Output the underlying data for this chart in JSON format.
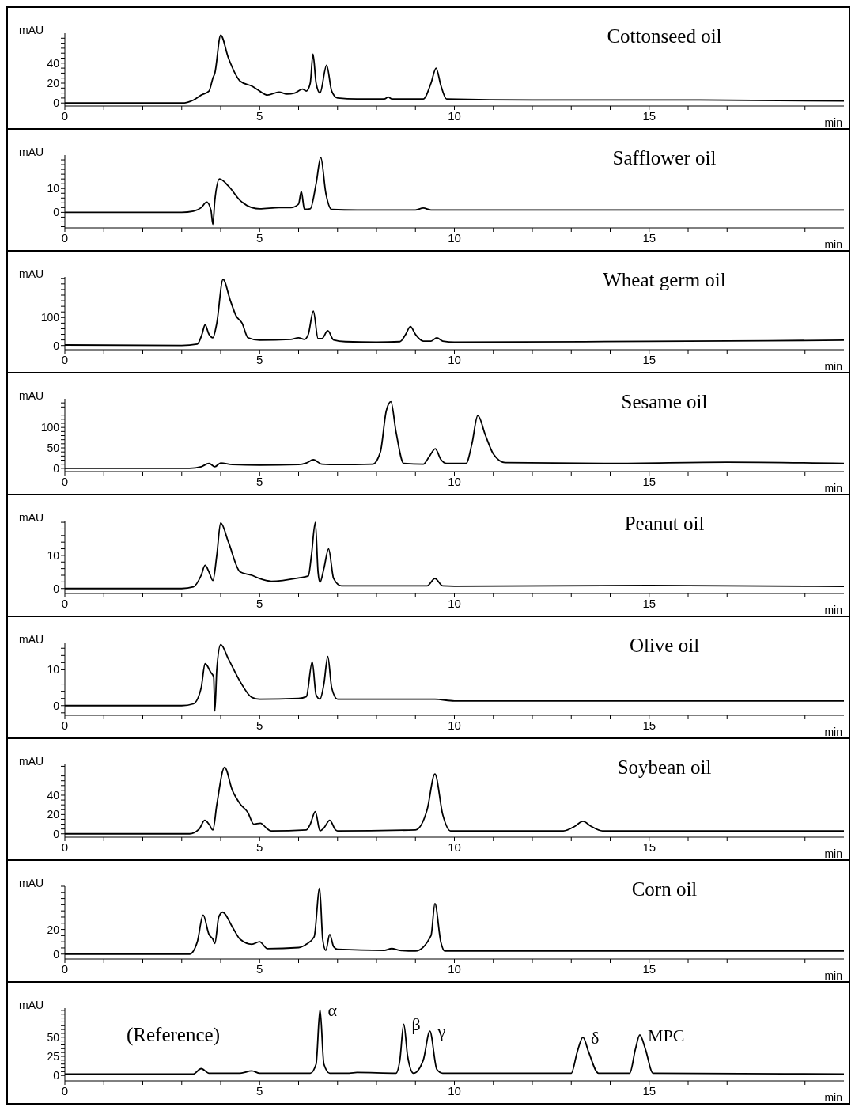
{
  "chart_data": [
    {
      "type": "line",
      "title": "Cottonseed oil",
      "xlabel": "min",
      "ylabel": "mAU",
      "color": "#000000",
      "xlim": [
        0,
        20
      ],
      "ylim": [
        -3,
        70
      ],
      "xticks": [
        0,
        {
          "value": 1,
          "label": null
        },
        {
          "value": 2,
          "label": null
        },
        {
          "value": 3,
          "label": null
        },
        {
          "value": 4,
          "label": null
        },
        5,
        {
          "value": 6,
          "label": null
        },
        {
          "value": 7,
          "label": null
        },
        {
          "value": 8,
          "label": null
        },
        {
          "value": 9,
          "label": null
        },
        10,
        {
          "value": 11,
          "label": null
        },
        {
          "value": 12,
          "label": null
        },
        {
          "value": 13,
          "label": null
        },
        {
          "value": 14,
          "label": null
        },
        15,
        {
          "value": 16,
          "label": null
        },
        {
          "value": 17,
          "label": null
        },
        {
          "value": 18,
          "label": null
        },
        {
          "value": 19,
          "label": null
        }
      ],
      "yticks": [
        0,
        {
          "value": 5,
          "label": null
        },
        {
          "value": 10,
          "label": null
        },
        {
          "value": 15,
          "label": null
        },
        20,
        {
          "value": 25,
          "label": null
        },
        {
          "value": 30,
          "label": null
        },
        {
          "value": 35,
          "label": null
        },
        40,
        {
          "value": 45,
          "label": null
        },
        {
          "value": 50,
          "label": null
        },
        {
          "value": 55,
          "label": null
        },
        {
          "value": 60,
          "label": null
        },
        {
          "value": 65,
          "label": null
        }
      ],
      "x": [
        0,
        3.0,
        3.3,
        3.5,
        3.7,
        3.8,
        3.85,
        4.0,
        4.2,
        4.5,
        4.8,
        5.0,
        5.2,
        5.5,
        5.7,
        5.9,
        6.1,
        6.2,
        6.3,
        6.37,
        6.45,
        6.55,
        6.72,
        6.85,
        7.0,
        7.5,
        8.2,
        8.3,
        8.4,
        9.2,
        9.4,
        9.53,
        9.65,
        9.8,
        12,
        16,
        20
      ],
      "values": [
        0,
        0,
        3,
        8,
        12,
        25,
        30,
        68,
        45,
        22,
        17,
        12,
        8,
        11,
        9,
        10,
        14,
        12,
        20,
        49,
        20,
        10,
        38,
        12,
        5,
        4,
        4,
        6,
        4,
        4,
        20,
        35,
        18,
        4,
        3,
        3,
        2
      ]
    },
    {
      "type": "line",
      "title": "Safflower oil",
      "xlabel": "min",
      "ylabel": "mAU",
      "color": "#000000",
      "xlim": [
        0,
        20
      ],
      "ylim": [
        -6.5,
        24
      ],
      "xticks": [
        0,
        {
          "value": 1,
          "label": null
        },
        {
          "value": 2,
          "label": null
        },
        {
          "value": 3,
          "label": null
        },
        {
          "value": 4,
          "label": null
        },
        5,
        {
          "value": 6,
          "label": null
        },
        {
          "value": 7,
          "label": null
        },
        {
          "value": 8,
          "label": null
        },
        {
          "value": 9,
          "label": null
        },
        10,
        {
          "value": 11,
          "label": null
        },
        {
          "value": 12,
          "label": null
        },
        {
          "value": 13,
          "label": null
        },
        {
          "value": 14,
          "label": null
        },
        15,
        {
          "value": 16,
          "label": null
        },
        {
          "value": 17,
          "label": null
        },
        {
          "value": 18,
          "label": null
        },
        {
          "value": 19,
          "label": null
        }
      ],
      "yticks": [
        {
          "value": -6,
          "label": null
        },
        {
          "value": -4,
          "label": null
        },
        {
          "value": -2,
          "label": null
        },
        0,
        {
          "value": 2,
          "label": null
        },
        {
          "value": 4,
          "label": null
        },
        {
          "value": 6,
          "label": null
        },
        {
          "value": 8,
          "label": null
        },
        10,
        {
          "value": 12,
          "label": null
        },
        {
          "value": 14,
          "label": null
        },
        {
          "value": 16,
          "label": null
        },
        {
          "value": 18,
          "label": null
        },
        {
          "value": 20,
          "label": null
        },
        {
          "value": 22,
          "label": null
        }
      ],
      "x": [
        0,
        3.0,
        3.3,
        3.5,
        3.64,
        3.75,
        3.8,
        3.85,
        3.97,
        4.2,
        4.5,
        4.8,
        5.0,
        5.5,
        5.8,
        6.0,
        6.07,
        6.15,
        6.3,
        6.45,
        6.57,
        6.7,
        6.85,
        7.5,
        9.0,
        9.2,
        9.4,
        12,
        20
      ],
      "values": [
        0,
        0,
        0.5,
        2,
        4.3,
        1,
        -5,
        5,
        14,
        11,
        5,
        2,
        1.5,
        2,
        2,
        3.5,
        8.8,
        1.3,
        1.5,
        12,
        23,
        8,
        1.2,
        1,
        1,
        1.8,
        1,
        1,
        1
      ]
    },
    {
      "type": "line",
      "title": "Wheat germ oil",
      "xlabel": "min",
      "ylabel": "mAU",
      "color": "#000000",
      "xlim": [
        0,
        20
      ],
      "ylim": [
        -15,
        245
      ],
      "xticks": [
        0,
        {
          "value": 1,
          "label": null
        },
        {
          "value": 2,
          "label": null
        },
        {
          "value": 3,
          "label": null
        },
        {
          "value": 4,
          "label": null
        },
        5,
        {
          "value": 6,
          "label": null
        },
        {
          "value": 7,
          "label": null
        },
        {
          "value": 8,
          "label": null
        },
        {
          "value": 9,
          "label": null
        },
        10,
        {
          "value": 11,
          "label": null
        },
        {
          "value": 12,
          "label": null
        },
        {
          "value": 13,
          "label": null
        },
        {
          "value": 14,
          "label": null
        },
        15,
        {
          "value": 16,
          "label": null
        },
        {
          "value": 17,
          "label": null
        },
        {
          "value": 18,
          "label": null
        },
        {
          "value": 19,
          "label": null
        }
      ],
      "yticks": [
        0,
        {
          "value": 20,
          "label": null
        },
        {
          "value": 40,
          "label": null
        },
        {
          "value": 60,
          "label": null
        },
        {
          "value": 80,
          "label": null
        },
        100,
        {
          "value": 120,
          "label": null
        },
        {
          "value": 140,
          "label": null
        },
        {
          "value": 160,
          "label": null
        },
        {
          "value": 180,
          "label": null
        },
        {
          "value": 200,
          "label": null
        },
        {
          "value": 220,
          "label": null
        },
        {
          "value": 240,
          "label": null
        }
      ],
      "x": [
        0,
        3.0,
        3.4,
        3.52,
        3.6,
        3.7,
        3.8,
        3.9,
        4.06,
        4.25,
        4.4,
        4.55,
        4.7,
        5.0,
        5.8,
        6.0,
        6.15,
        6.25,
        6.38,
        6.5,
        6.6,
        6.75,
        6.9,
        7.2,
        8.0,
        8.6,
        8.75,
        8.87,
        9.0,
        9.2,
        9.4,
        9.55,
        9.7,
        10,
        15,
        20
      ],
      "values": [
        2,
        0,
        5,
        40,
        74,
        40,
        28,
        80,
        236,
        160,
        105,
        80,
        28,
        19,
        22,
        28,
        22,
        40,
        123,
        25,
        25,
        53,
        20,
        14,
        12,
        14,
        40,
        68,
        40,
        16,
        16,
        28,
        16,
        12,
        15,
        19
      ]
    },
    {
      "type": "line",
      "title": "Sesame oil",
      "xlabel": "min",
      "ylabel": "mAU",
      "color": "#000000",
      "xlim": [
        0,
        20
      ],
      "ylim": [
        -8,
        170
      ],
      "xticks": [
        0,
        {
          "value": 1,
          "label": null
        },
        {
          "value": 2,
          "label": null
        },
        {
          "value": 3,
          "label": null
        },
        {
          "value": 4,
          "label": null
        },
        5,
        {
          "value": 6,
          "label": null
        },
        {
          "value": 7,
          "label": null
        },
        {
          "value": 8,
          "label": null
        },
        {
          "value": 9,
          "label": null
        },
        10,
        {
          "value": 11,
          "label": null
        },
        {
          "value": 12,
          "label": null
        },
        {
          "value": 13,
          "label": null
        },
        {
          "value": 14,
          "label": null
        },
        15,
        {
          "value": 16,
          "label": null
        },
        {
          "value": 17,
          "label": null
        },
        {
          "value": 18,
          "label": null
        },
        {
          "value": 19,
          "label": null
        }
      ],
      "yticks": [
        0,
        {
          "value": 10,
          "label": null
        },
        {
          "value": 20,
          "label": null
        },
        {
          "value": 30,
          "label": null
        },
        {
          "value": 40,
          "label": null
        },
        50,
        {
          "value": 60,
          "label": null
        },
        {
          "value": 70,
          "label": null
        },
        {
          "value": 80,
          "label": null
        },
        {
          "value": 90,
          "label": null
        },
        100,
        {
          "value": 110,
          "label": null
        },
        {
          "value": 120,
          "label": null
        },
        {
          "value": 130,
          "label": null
        },
        {
          "value": 140,
          "label": null
        },
        {
          "value": 150,
          "label": null
        },
        {
          "value": 160,
          "label": null
        }
      ],
      "x": [
        0,
        3.2,
        3.5,
        3.7,
        3.85,
        4.0,
        4.3,
        5.0,
        6.0,
        6.2,
        6.38,
        6.6,
        7.0,
        7.9,
        8.1,
        8.25,
        8.37,
        8.5,
        8.7,
        9.2,
        9.35,
        9.51,
        9.65,
        9.8,
        10.3,
        10.45,
        10.6,
        10.8,
        11.0,
        11.3,
        14,
        17,
        20
      ],
      "values": [
        0,
        0,
        4,
        12,
        4,
        13,
        9,
        8,
        9,
        13,
        21,
        10,
        9,
        10,
        40,
        140,
        163,
        90,
        12,
        10,
        28,
        48,
        22,
        12,
        12,
        60,
        129,
        80,
        35,
        14,
        12,
        15,
        12
      ]
    },
    {
      "type": "line",
      "title": "Peanut oil",
      "xlabel": "min",
      "ylabel": "mAU",
      "color": "#000000",
      "xlim": [
        0,
        20
      ],
      "ylim": [
        -1.5,
        20.5
      ],
      "xticks": [
        0,
        {
          "value": 1,
          "label": null
        },
        {
          "value": 2,
          "label": null
        },
        {
          "value": 3,
          "label": null
        },
        {
          "value": 4,
          "label": null
        },
        5,
        {
          "value": 6,
          "label": null
        },
        {
          "value": 7,
          "label": null
        },
        {
          "value": 8,
          "label": null
        },
        {
          "value": 9,
          "label": null
        },
        10,
        {
          "value": 11,
          "label": null
        },
        {
          "value": 12,
          "label": null
        },
        {
          "value": 13,
          "label": null
        },
        {
          "value": 14,
          "label": null
        },
        15,
        {
          "value": 16,
          "label": null
        },
        {
          "value": 17,
          "label": null
        },
        {
          "value": 18,
          "label": null
        },
        {
          "value": 19,
          "label": null
        }
      ],
      "yticks": [
        0,
        {
          "value": 2,
          "label": null
        },
        {
          "value": 4,
          "label": null
        },
        {
          "value": 6,
          "label": null
        },
        {
          "value": 8,
          "label": null
        },
        10,
        {
          "value": 12,
          "label": null
        },
        {
          "value": 14,
          "label": null
        },
        {
          "value": 16,
          "label": null
        },
        {
          "value": 18,
          "label": null
        },
        {
          "value": 20,
          "label": null
        }
      ],
      "x": [
        0,
        3.0,
        3.3,
        3.5,
        3.6,
        3.7,
        3.8,
        3.9,
        4.0,
        4.2,
        4.5,
        4.8,
        5.0,
        5.3,
        6.0,
        6.25,
        6.33,
        6.43,
        6.5,
        6.55,
        6.65,
        6.77,
        6.9,
        7.1,
        8.0,
        9.3,
        9.5,
        9.7,
        10,
        15,
        20
      ],
      "values": [
        0,
        0,
        0.5,
        4,
        7,
        5,
        2.4,
        10,
        19.8,
        14,
        5,
        4,
        3,
        2.2,
        3.2,
        3.8,
        10,
        20,
        5,
        1.9,
        6,
        12,
        3,
        0.8,
        0.8,
        0.8,
        3,
        0.8,
        0.7,
        0.9,
        0.6
      ]
    },
    {
      "type": "line",
      "title": "Olive oil",
      "xlabel": "min",
      "ylabel": "mAU",
      "color": "#000000",
      "xlim": [
        0,
        20
      ],
      "ylim": [
        -2.7,
        17.6
      ],
      "xticks": [
        0,
        {
          "value": 1,
          "label": null
        },
        {
          "value": 2,
          "label": null
        },
        {
          "value": 3,
          "label": null
        },
        {
          "value": 4,
          "label": null
        },
        5,
        {
          "value": 6,
          "label": null
        },
        {
          "value": 7,
          "label": null
        },
        {
          "value": 8,
          "label": null
        },
        {
          "value": 9,
          "label": null
        },
        10,
        {
          "value": 11,
          "label": null
        },
        {
          "value": 12,
          "label": null
        },
        {
          "value": 13,
          "label": null
        },
        {
          "value": 14,
          "label": null
        },
        15,
        {
          "value": 16,
          "label": null
        },
        {
          "value": 17,
          "label": null
        },
        {
          "value": 18,
          "label": null
        },
        {
          "value": 19,
          "label": null
        }
      ],
      "yticks": [
        {
          "value": -2,
          "label": null
        },
        0,
        {
          "value": 2,
          "label": null
        },
        {
          "value": 4,
          "label": null
        },
        {
          "value": 6,
          "label": null
        },
        {
          "value": 8,
          "label": null
        },
        10,
        {
          "value": 12,
          "label": null
        },
        {
          "value": 14,
          "label": null
        },
        {
          "value": 16,
          "label": null
        }
      ],
      "x": [
        0,
        3.0,
        3.3,
        3.5,
        3.6,
        3.75,
        3.82,
        3.85,
        3.9,
        4.0,
        4.2,
        4.5,
        4.8,
        5.0,
        6.0,
        6.2,
        6.35,
        6.45,
        6.55,
        6.65,
        6.75,
        6.85,
        7.0,
        8.3,
        9.5,
        10,
        20
      ],
      "values": [
        0,
        0,
        0.5,
        5,
        11.7,
        9.2,
        8,
        -1.5,
        10,
        17,
        13,
        6.7,
        2.3,
        1.8,
        2,
        2.5,
        12.2,
        3,
        1.8,
        6,
        13.7,
        5,
        1.8,
        1.8,
        1.8,
        1.3,
        1.3
      ]
    },
    {
      "type": "line",
      "title": "Soybean oil",
      "xlabel": "min",
      "ylabel": "mAU",
      "color": "#000000",
      "xlim": [
        0,
        20
      ],
      "ylim": [
        -3.5,
        72
      ],
      "xticks": [
        0,
        {
          "value": 1,
          "label": null
        },
        {
          "value": 2,
          "label": null
        },
        {
          "value": 3,
          "label": null
        },
        {
          "value": 4,
          "label": null
        },
        5,
        {
          "value": 6,
          "label": null
        },
        {
          "value": 7,
          "label": null
        },
        {
          "value": 8,
          "label": null
        },
        {
          "value": 9,
          "label": null
        },
        10,
        {
          "value": 11,
          "label": null
        },
        {
          "value": 12,
          "label": null
        },
        {
          "value": 13,
          "label": null
        },
        {
          "value": 14,
          "label": null
        },
        15,
        {
          "value": 16,
          "label": null
        },
        {
          "value": 17,
          "label": null
        },
        {
          "value": 18,
          "label": null
        },
        {
          "value": 19,
          "label": null
        }
      ],
      "yticks": [
        0,
        {
          "value": 5,
          "label": null
        },
        {
          "value": 10,
          "label": null
        },
        {
          "value": 15,
          "label": null
        },
        20,
        {
          "value": 25,
          "label": null
        },
        {
          "value": 30,
          "label": null
        },
        {
          "value": 35,
          "label": null
        },
        40,
        {
          "value": 45,
          "label": null
        },
        {
          "value": 50,
          "label": null
        },
        {
          "value": 55,
          "label": null
        },
        {
          "value": 60,
          "label": null
        },
        {
          "value": 65,
          "label": null
        },
        {
          "value": 70,
          "label": null
        }
      ],
      "x": [
        0,
        3.2,
        3.45,
        3.59,
        3.7,
        3.8,
        3.9,
        4.1,
        4.3,
        4.5,
        4.7,
        4.85,
        5.02,
        5.2,
        5.3,
        6.2,
        6.3,
        6.43,
        6.55,
        6.65,
        6.8,
        6.95,
        7.0,
        9.0,
        9.3,
        9.5,
        9.7,
        9.9,
        12.8,
        13.1,
        13.3,
        13.5,
        13.8,
        20
      ],
      "values": [
        0,
        0,
        5,
        14,
        10,
        4,
        30,
        69,
        45,
        31,
        22,
        10,
        11,
        5,
        3,
        4,
        10,
        23,
        3,
        6,
        14,
        4,
        3,
        4,
        25,
        62,
        20,
        3,
        3,
        8,
        13,
        8,
        3,
        3
      ]
    },
    {
      "type": "line",
      "title": "Corn oil",
      "xlabel": "min",
      "ylabel": "mAU",
      "color": "#000000",
      "xlim": [
        0,
        20
      ],
      "ylim": [
        -4,
        55
      ],
      "xticks": [
        0,
        {
          "value": 1,
          "label": null
        },
        {
          "value": 2,
          "label": null
        },
        {
          "value": 3,
          "label": null
        },
        {
          "value": 4,
          "label": null
        },
        5,
        {
          "value": 6,
          "label": null
        },
        {
          "value": 7,
          "label": null
        },
        {
          "value": 8,
          "label": null
        },
        {
          "value": 9,
          "label": null
        },
        10,
        {
          "value": 11,
          "label": null
        },
        {
          "value": 12,
          "label": null
        },
        {
          "value": 13,
          "label": null
        },
        {
          "value": 14,
          "label": null
        },
        15,
        {
          "value": 16,
          "label": null
        },
        {
          "value": 17,
          "label": null
        },
        {
          "value": 18,
          "label": null
        },
        {
          "value": 19,
          "label": null
        }
      ],
      "yticks": [
        0,
        {
          "value": 5,
          "label": null
        },
        {
          "value": 10,
          "label": null
        },
        {
          "value": 15,
          "label": null
        },
        20,
        {
          "value": 25,
          "label": null
        },
        {
          "value": 30,
          "label": null
        },
        {
          "value": 35,
          "label": null
        },
        {
          "value": 40,
          "label": null
        },
        {
          "value": 45,
          "label": null
        },
        {
          "value": 50,
          "label": null
        },
        {
          "value": 55,
          "label": null
        }
      ],
      "x": [
        0,
        3.2,
        3.4,
        3.55,
        3.7,
        3.8,
        3.85,
        3.95,
        4.05,
        4.3,
        4.5,
        4.8,
        5.0,
        5.2,
        6.0,
        6.2,
        6.4,
        6.54,
        6.62,
        6.7,
        6.8,
        6.9,
        7.0,
        8.2,
        8.39,
        8.6,
        9.0,
        9.4,
        9.5,
        9.65,
        9.75,
        20
      ],
      "values": [
        0,
        0,
        10,
        31.7,
        16,
        12,
        8.6,
        30,
        34,
        22,
        12,
        8,
        10,
        4.4,
        5.3,
        8,
        14,
        53.5,
        12,
        3,
        16,
        6,
        3.9,
        3,
        4.5,
        3,
        2.5,
        15,
        41,
        10,
        2.5,
        2.5
      ]
    },
    {
      "type": "line",
      "xlabel": "min",
      "ylabel": "mAU",
      "color": "#000000",
      "xlim": [
        0,
        20
      ],
      "ylim": [
        -7,
        88
      ],
      "xticks": [
        0,
        {
          "value": 1,
          "label": null
        },
        {
          "value": 2,
          "label": null
        },
        {
          "value": 3,
          "label": null
        },
        {
          "value": 4,
          "label": null
        },
        5,
        {
          "value": 6,
          "label": null
        },
        {
          "value": 7,
          "label": null
        },
        {
          "value": 8,
          "label": null
        },
        {
          "value": 9,
          "label": null
        },
        10,
        {
          "value": 11,
          "label": null
        },
        {
          "value": 12,
          "label": null
        },
        {
          "value": 13,
          "label": null
        },
        {
          "value": 14,
          "label": null
        },
        15,
        {
          "value": 16,
          "label": null
        },
        {
          "value": 17,
          "label": null
        },
        {
          "value": 18,
          "label": null
        },
        {
          "value": 19,
          "label": null
        }
      ],
      "yticks": [
        0,
        {
          "value": 5,
          "label": null
        },
        {
          "value": 10,
          "label": null
        },
        {
          "value": 15,
          "label": null
        },
        {
          "value": 20,
          "label": null
        },
        25,
        {
          "value": 30,
          "label": null
        },
        {
          "value": 35,
          "label": null
        },
        {
          "value": 40,
          "label": null
        },
        {
          "value": 45,
          "label": null
        },
        50,
        {
          "value": 55,
          "label": null
        },
        {
          "value": 60,
          "label": null
        },
        {
          "value": 65,
          "label": null
        },
        {
          "value": 70,
          "label": null
        },
        {
          "value": 75,
          "label": null
        },
        {
          "value": 80,
          "label": null
        },
        {
          "value": 85,
          "label": null
        }
      ],
      "x": [
        0,
        3.3,
        3.5,
        3.7,
        4.5,
        4.8,
        5.0,
        6.3,
        6.45,
        6.55,
        6.65,
        6.8,
        7.3,
        7.5,
        8.5,
        8.6,
        8.7,
        8.8,
        8.95,
        9.2,
        9.37,
        9.55,
        9.7,
        13.0,
        13.15,
        13.3,
        13.45,
        13.7,
        14.5,
        14.65,
        14.76,
        14.9,
        15.1,
        20
      ],
      "values": [
        2,
        2,
        9,
        3,
        3,
        6,
        3,
        3,
        15,
        86,
        15,
        3,
        3,
        4,
        3,
        20,
        67,
        25,
        3,
        20,
        58,
        8,
        3,
        3,
        30,
        50,
        30,
        3,
        3,
        35,
        53,
        35,
        3,
        2
      ],
      "annotations": [
        "(Reference)",
        {
          "text": "α",
          "x": 6.55,
          "y": 86
        },
        {
          "text": "β",
          "x": 8.7,
          "y": 67
        },
        {
          "text": "γ",
          "x": 9.37,
          "y": 58
        },
        {
          "text": "δ",
          "x": 13.3,
          "y": 50
        },
        {
          "text": "MPC",
          "x": 14.76,
          "y": 53
        }
      ]
    }
  ]
}
